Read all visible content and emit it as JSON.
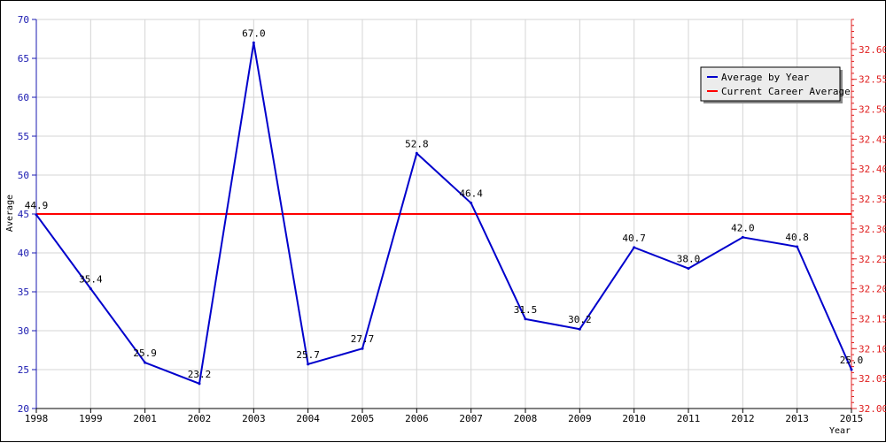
{
  "chart_data": {
    "type": "line",
    "xlabel": "Year",
    "ylabel": "Average",
    "x": [
      "1998",
      "1999",
      "2001",
      "2002",
      "2003",
      "2004",
      "2005",
      "2006",
      "2007",
      "2008",
      "2009",
      "2010",
      "2011",
      "2012",
      "2013",
      "2015"
    ],
    "ylim": [
      20,
      70
    ],
    "yticks": [
      20,
      25,
      30,
      35,
      40,
      45,
      50,
      55,
      60,
      65,
      70
    ],
    "y2lim": [
      32.0,
      32.65
    ],
    "y2ticks": [
      "32.00",
      "32.05",
      "32.10",
      "32.15",
      "32.20",
      "32.25",
      "32.30",
      "32.35",
      "32.40",
      "32.45",
      "32.50",
      "32.55",
      "32.60"
    ],
    "grid": true,
    "legend_placement": "top-right",
    "series": [
      {
        "name": "Average by Year",
        "color": "#0000cc",
        "axis": "left",
        "values": [
          44.9,
          35.4,
          25.9,
          23.2,
          67.0,
          25.7,
          27.7,
          52.8,
          46.4,
          31.5,
          30.2,
          40.7,
          38.0,
          42.0,
          40.8,
          25.0
        ],
        "labels": [
          "44.9",
          "35.4",
          "25.9",
          "23.2",
          "67.0",
          "25.7",
          "27.7",
          "52.8",
          "46.4",
          "31.5",
          "30.2",
          "40.7",
          "38.0",
          "42.0",
          "40.8",
          "25.0"
        ]
      },
      {
        "name": "Current Career Average",
        "color": "#ff0000",
        "axis": "right",
        "value": 32.325
      }
    ]
  }
}
